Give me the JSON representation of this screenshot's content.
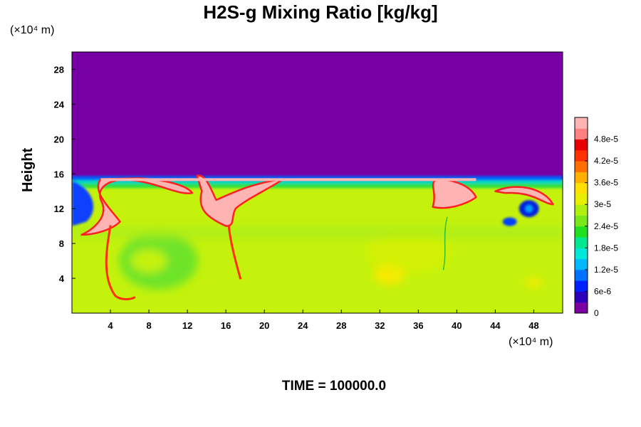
{
  "chart_data": {
    "type": "heatmap",
    "title": "H2S-g Mixing Ratio [kg/kg]",
    "ylabel": "Height",
    "xlabel": "",
    "y_unit": "(×10⁴ m)",
    "x_unit": "(×10⁴ m)",
    "xlim": [
      0,
      51
    ],
    "ylim": [
      0,
      30
    ],
    "x_ticks": [
      "4",
      "8",
      "12",
      "16",
      "20",
      "24",
      "28",
      "32",
      "36",
      "40",
      "44",
      "48"
    ],
    "y_ticks": [
      "4",
      "8",
      "12",
      "16",
      "20",
      "24",
      "28"
    ],
    "colorbar": {
      "min": 0,
      "max": 5.4e-05,
      "tick_labels": [
        "0",
        "6e-6",
        "1.2e-5",
        "1.8e-5",
        "2.4e-5",
        "3e-5",
        "3.6e-5",
        "4.2e-5",
        "4.8e-5"
      ],
      "colors": [
        "#7a00a4",
        "#2b00b8",
        "#0020ff",
        "#0070ff",
        "#00b8ff",
        "#00e8d8",
        "#00e890",
        "#20e020",
        "#78e818",
        "#b0f010",
        "#e8f000",
        "#ffe000",
        "#ffb000",
        "#ff7000",
        "#ff3000",
        "#e80000",
        "#ff8080",
        "#ffb4b4"
      ]
    },
    "background_top_color": "#7600a4",
    "field_color": "#c4f20c",
    "plume_color": "#ffb4b4",
    "plume_top_height": 15.5,
    "time_label": "TIME = 100000.0"
  }
}
